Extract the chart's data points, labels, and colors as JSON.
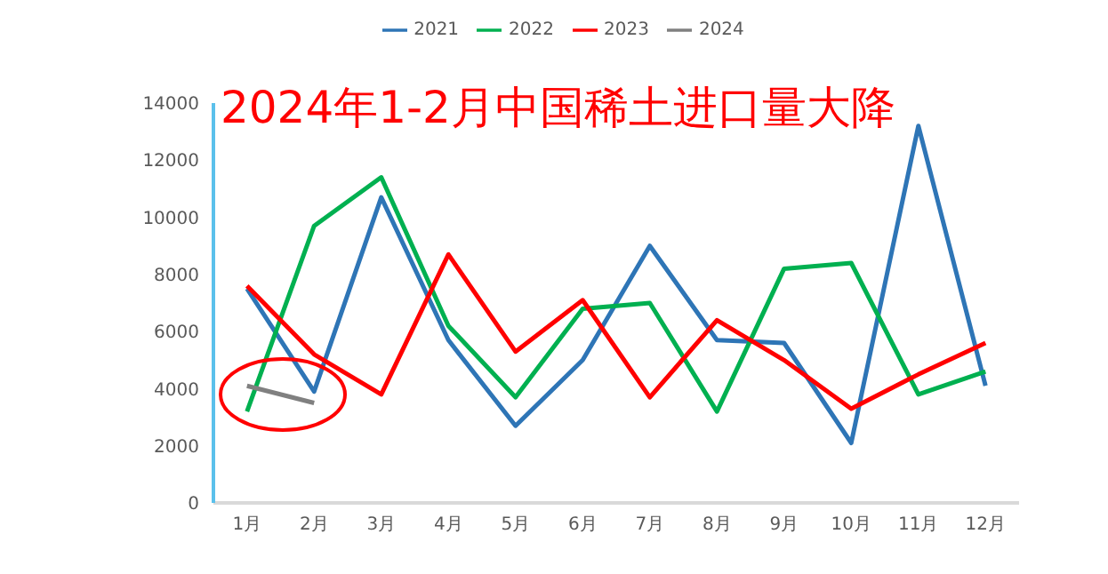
{
  "chart_data": {
    "type": "line",
    "title": "2024年1-2月中国稀土进口量大降",
    "categories": [
      "1月",
      "2月",
      "3月",
      "4月",
      "5月",
      "6月",
      "7月",
      "8月",
      "9月",
      "10月",
      "11月",
      "12月"
    ],
    "series": [
      {
        "name": "2021",
        "color": "#2e75b6",
        "values": [
          7500,
          3900,
          10700,
          5700,
          2700,
          5000,
          9000,
          5700,
          5600,
          2100,
          13200,
          4100
        ]
      },
      {
        "name": "2022",
        "color": "#00b050",
        "values": [
          3200,
          9700,
          11400,
          6200,
          3700,
          6800,
          7000,
          3200,
          8200,
          8400,
          3800,
          4600
        ]
      },
      {
        "name": "2023",
        "color": "#ff0000",
        "values": [
          7600,
          5200,
          3800,
          8700,
          5300,
          7100,
          3700,
          6400,
          5000,
          3300,
          4500,
          5600
        ]
      },
      {
        "name": "2024",
        "color": "#808080",
        "values": [
          4100,
          3500,
          null,
          null,
          null,
          null,
          null,
          null,
          null,
          null,
          null,
          null
        ]
      }
    ],
    "ylim": [
      0,
      14000
    ],
    "yticks": [
      0,
      2000,
      4000,
      6000,
      8000,
      10000,
      12000,
      14000
    ],
    "grid": false,
    "legend": "top",
    "marker": "none",
    "line_style": "solid"
  }
}
